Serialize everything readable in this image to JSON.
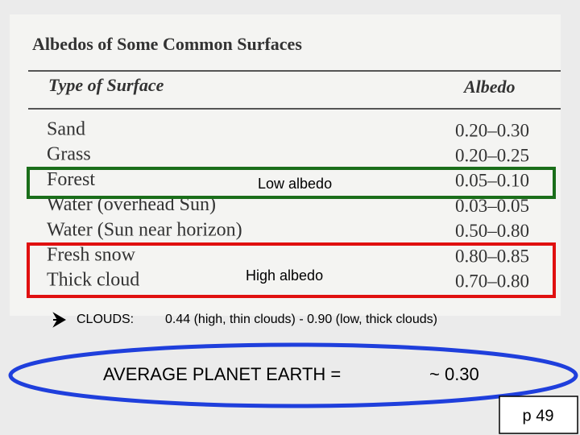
{
  "table": {
    "title": "Albedos of Some Common Surfaces",
    "header": [
      "Type of Surface",
      "Albedo"
    ],
    "rows": [
      [
        "Sand",
        "0.20–0.30"
      ],
      [
        "Grass",
        "0.20–0.25"
      ],
      [
        "Forest",
        "0.05–0.10"
      ],
      [
        "Water (overhead Sun)",
        "0.03–0.05"
      ],
      [
        "Water (Sun near horizon)",
        "0.50–0.80"
      ],
      [
        "Fresh snow",
        "0.80–0.85"
      ],
      [
        "Thick cloud",
        "0.70–0.80"
      ]
    ]
  },
  "annotations": {
    "low": "Low albedo",
    "high": "High albedo"
  },
  "clouds": {
    "label": "CLOUDS:",
    "text": "0.44 (high, thin clouds) - 0.90 (low, thick clouds)"
  },
  "average": {
    "label": "AVERAGE PLANET EARTH =",
    "value": "~ 0.30"
  },
  "page": "p 49"
}
